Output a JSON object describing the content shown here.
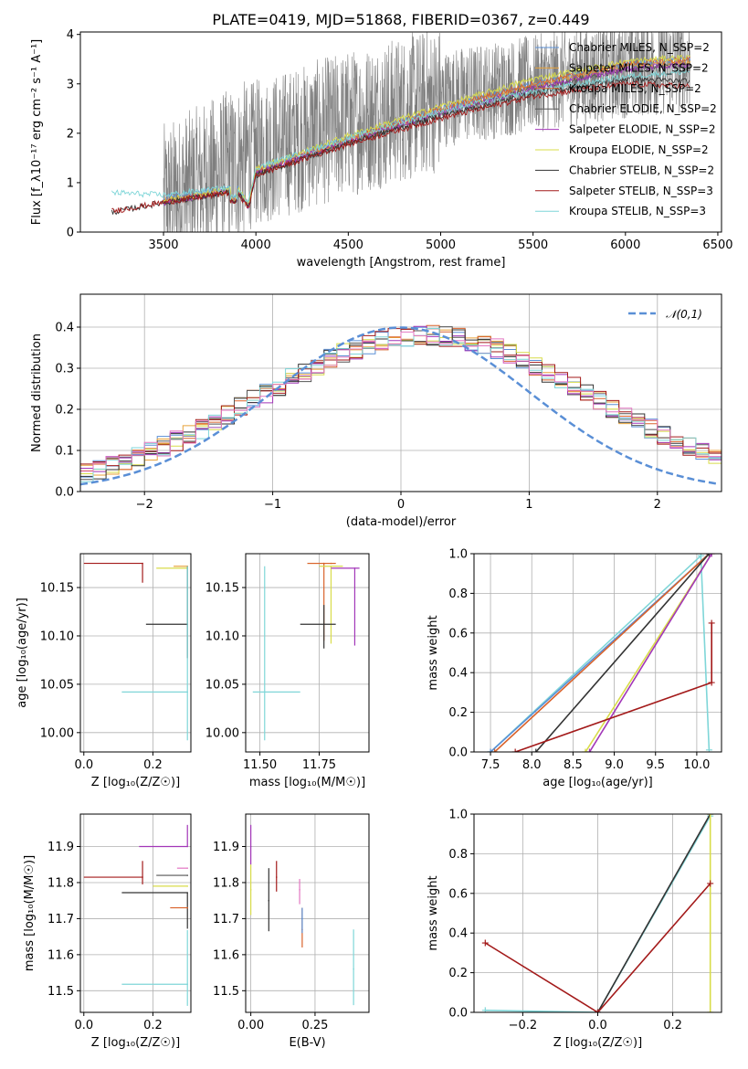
{
  "chart_data": [
    {
      "id": "spectrum",
      "type": "line",
      "title": "PLATE=0419, MJD=51868, FIBERID=0367, z=0.449",
      "xlabel": "wavelength [Angstrom, rest frame]",
      "ylabel": "Flux [f_λ10⁻¹⁷ erg cm⁻² s⁻¹ A⁻¹]",
      "xlim": [
        3050,
        6520
      ],
      "ylim": [
        0,
        4.05
      ],
      "xticks": [
        3500,
        4000,
        4500,
        5000,
        5500,
        6000,
        6500
      ],
      "yticks": [
        0,
        1,
        2,
        3,
        4
      ],
      "grid": false,
      "legend_position": "top-right",
      "series": [
        {
          "name": "Chabrier MILES, N_SSP=2",
          "color": "#5a8fd6",
          "shape": [
            [
              3500,
              0.7
            ],
            [
              3900,
              0.9
            ],
            [
              3960,
              0.55
            ],
            [
              4000,
              1.25
            ],
            [
              4500,
              1.9
            ],
            [
              5000,
              2.5
            ],
            [
              5500,
              3.0
            ],
            [
              6000,
              3.4
            ],
            [
              6350,
              3.5
            ]
          ]
        },
        {
          "name": "Salpeter MILES, N_SSP=2",
          "color": "#e8a23a",
          "shape": [
            [
              3500,
              0.62
            ],
            [
              3900,
              0.85
            ],
            [
              3960,
              0.5
            ],
            [
              4000,
              1.2
            ],
            [
              4500,
              1.85
            ],
            [
              5000,
              2.45
            ],
            [
              5500,
              2.95
            ],
            [
              6000,
              3.35
            ],
            [
              6350,
              3.45
            ]
          ]
        },
        {
          "name": "Kroupa MILES, N_SSP=2",
          "color": "#d9622b",
          "shape": [
            [
              3500,
              0.6
            ],
            [
              3900,
              0.86
            ],
            [
              3960,
              0.52
            ],
            [
              4000,
              1.22
            ],
            [
              4500,
              1.88
            ],
            [
              5000,
              2.5
            ],
            [
              5500,
              3.0
            ],
            [
              6000,
              3.4
            ],
            [
              6350,
              3.5
            ]
          ]
        },
        {
          "name": "Chabrier ELODIE, N_SSP=2",
          "color": "#555555",
          "shape": [
            [
              3500,
              0.58
            ],
            [
              3900,
              0.84
            ],
            [
              3960,
              0.5
            ],
            [
              4000,
              1.18
            ],
            [
              4500,
              1.8
            ],
            [
              5000,
              2.4
            ],
            [
              5500,
              2.9
            ],
            [
              6000,
              3.3
            ],
            [
              6350,
              3.4
            ]
          ]
        },
        {
          "name": "Salpeter ELODIE, N_SSP=2",
          "color": "#a236b8",
          "shape": [
            [
              3500,
              0.6
            ],
            [
              3900,
              0.86
            ],
            [
              3960,
              0.52
            ],
            [
              4000,
              1.2
            ],
            [
              4500,
              1.84
            ],
            [
              5000,
              2.42
            ],
            [
              5500,
              2.9
            ],
            [
              6000,
              3.3
            ],
            [
              6350,
              3.4
            ]
          ]
        },
        {
          "name": "Kroupa ELODIE, N_SSP=2",
          "color": "#d8dc4a",
          "shape": [
            [
              3500,
              0.64
            ],
            [
              3900,
              0.9
            ],
            [
              3960,
              0.55
            ],
            [
              4000,
              1.28
            ],
            [
              4500,
              1.95
            ],
            [
              5000,
              2.55
            ],
            [
              5500,
              3.1
            ],
            [
              6000,
              3.45
            ],
            [
              6350,
              3.55
            ]
          ]
        },
        {
          "name": "Chabrier STELIB, N_SSP=2",
          "color": "#333333",
          "shape": [
            [
              3220,
              0.4
            ],
            [
              3500,
              0.6
            ],
            [
              3900,
              0.82
            ],
            [
              3960,
              0.48
            ],
            [
              4000,
              1.15
            ],
            [
              4500,
              1.8
            ],
            [
              5000,
              2.35
            ],
            [
              5500,
              2.8
            ],
            [
              6000,
              3.1
            ],
            [
              6350,
              3.05
            ]
          ]
        },
        {
          "name": "Salpeter STELIB, N_SSP=3",
          "color": "#a31a1a",
          "shape": [
            [
              3220,
              0.42
            ],
            [
              3500,
              0.6
            ],
            [
              3900,
              0.82
            ],
            [
              3960,
              0.48
            ],
            [
              4000,
              1.15
            ],
            [
              4500,
              1.78
            ],
            [
              5000,
              2.3
            ],
            [
              5500,
              2.75
            ],
            [
              6000,
              3.0
            ],
            [
              6350,
              2.95
            ]
          ]
        },
        {
          "name": "Kroupa STELIB, N_SSP=3",
          "color": "#7fd6d8",
          "shape": [
            [
              3220,
              0.8
            ],
            [
              3500,
              0.75
            ],
            [
              3900,
              0.92
            ],
            [
              3960,
              0.6
            ],
            [
              4000,
              1.3
            ],
            [
              4500,
              1.9
            ],
            [
              5000,
              2.45
            ],
            [
              5500,
              2.85
            ],
            [
              6000,
              3.15
            ],
            [
              6350,
              3.25
            ]
          ]
        }
      ],
      "observed": {
        "color": "#7f7f7f",
        "xrange": [
          3500,
          6350
        ],
        "shape": [
          [
            3500,
            0.6
          ],
          [
            4000,
            1.6
          ],
          [
            4500,
            2.2
          ],
          [
            5000,
            2.7
          ],
          [
            5500,
            3.0
          ],
          [
            6000,
            3.3
          ],
          [
            6350,
            3.4
          ]
        ]
      }
    },
    {
      "id": "residuals",
      "type": "step",
      "xlabel": "(data-model)/error",
      "ylabel": "Normed distribution",
      "xlim": [
        -2.5,
        2.5
      ],
      "ylim": [
        0,
        0.48
      ],
      "xticks": [
        -2,
        -1,
        0,
        1,
        2
      ],
      "yticks": [
        0.0,
        0.1,
        0.2,
        0.3,
        0.4
      ],
      "grid": true,
      "legend_position": "top-right",
      "reference": {
        "name": "𝒩(0,1)",
        "color": "#5a8fd6"
      },
      "bins": {
        "start": -2.5,
        "width": 0.1,
        "count": 50
      },
      "center": 0.2,
      "sigma": 1.3,
      "series_colors": [
        "#5a8fd6",
        "#e8a23a",
        "#d9622b",
        "#555555",
        "#a236b8",
        "#d8dc4a",
        "#333333",
        "#a31a1a",
        "#7fd6d8",
        "#e377c2"
      ]
    },
    {
      "id": "age_vs_Z",
      "type": "errorbar",
      "xlabel": "Z [log₁₀(Z/Z☉)]",
      "ylabel": "age  [log₁₀(age/yr)]",
      "xlim": [
        -0.01,
        0.31
      ],
      "ylim": [
        9.98,
        10.185
      ],
      "xticks": [
        0.0,
        0.2
      ],
      "yticks": [
        10.0,
        10.05,
        10.1,
        10.15
      ],
      "grid": true,
      "points": [
        {
          "x": 0.17,
          "y": 10.175,
          "xerr": [
            0.17,
            0.0
          ],
          "yerr": [
            0.02,
            0.0
          ],
          "color": "#a31a1a"
        },
        {
          "x": 0.3,
          "y": 10.17,
          "xerr": [
            0.09,
            0.0
          ],
          "yerr": [
            0.0,
            0.0
          ],
          "color": "#d8dc4a"
        },
        {
          "x": 0.3,
          "y": 10.172,
          "xerr": [
            0.04,
            0.0
          ],
          "yerr": [
            0.0,
            0.0
          ],
          "color": "#e8a23a"
        },
        {
          "x": 0.3,
          "y": 10.112,
          "xerr": [
            0.12,
            0.0
          ],
          "yerr": [
            0.035,
            0.06
          ],
          "color": "#333333"
        },
        {
          "x": 0.3,
          "y": 10.042,
          "xerr": [
            0.19,
            0.0
          ],
          "yerr": [
            0.05,
            0.13
          ],
          "color": "#7fd6d8"
        }
      ]
    },
    {
      "id": "age_vs_mass",
      "type": "errorbar",
      "xlabel": "mass [log₁₀(M/M☉)]",
      "ylabel": "",
      "xlim": [
        11.44,
        11.96
      ],
      "ylim": [
        9.98,
        10.185
      ],
      "xticks": [
        11.5,
        11.75
      ],
      "yticks": [
        10.0,
        10.05,
        10.1,
        10.15
      ],
      "grid": true,
      "points": [
        {
          "x": 11.8,
          "y": 10.175,
          "xerr": [
            0.1,
            0.02
          ],
          "yerr": [
            0.0,
            0.0
          ],
          "color": "#e8a23a"
        },
        {
          "x": 11.77,
          "y": 10.175,
          "xerr": [
            0.07,
            0.05
          ],
          "yerr": [
            0.08,
            0.0
          ],
          "color": "#d9622b"
        },
        {
          "x": 11.8,
          "y": 10.172,
          "xerr": [
            0.05,
            0.05
          ],
          "yerr": [
            0.08,
            0.0
          ],
          "color": "#d8dc4a"
        },
        {
          "x": 11.9,
          "y": 10.17,
          "xerr": [
            0.1,
            0.02
          ],
          "yerr": [
            0.08,
            0.0
          ],
          "color": "#a236b8"
        },
        {
          "x": 11.77,
          "y": 10.112,
          "xerr": [
            0.1,
            0.05
          ],
          "yerr": [
            0.025,
            0.02
          ],
          "color": "#333333"
        },
        {
          "x": 11.52,
          "y": 10.042,
          "xerr": [
            0.05,
            0.15
          ],
          "yerr": [
            0.05,
            0.13
          ],
          "color": "#7fd6d8"
        }
      ]
    },
    {
      "id": "weight_vs_age",
      "type": "line",
      "xlabel": "age  [log₁₀(age/yr)]",
      "ylabel": "mass weight",
      "xlim": [
        7.3,
        10.3
      ],
      "ylim": [
        0,
        1
      ],
      "xticks": [
        7.5,
        8.0,
        8.5,
        9.0,
        9.5,
        10.0
      ],
      "yticks": [
        0.0,
        0.2,
        0.4,
        0.6,
        0.8,
        1.0
      ],
      "grid": true,
      "series": [
        {
          "color": "#7fd6d8",
          "x": [
            7.5,
            10.05,
            10.15
          ],
          "y": [
            0.0,
            0.99,
            0.01
          ]
        },
        {
          "color": "#5a8fd6",
          "x": [
            7.5,
            10.15
          ],
          "y": [
            0.0,
            1.0
          ]
        },
        {
          "color": "#d9622b",
          "x": [
            7.55,
            10.15
          ],
          "y": [
            0.0,
            1.0
          ]
        },
        {
          "color": "#333333",
          "x": [
            8.05,
            10.15
          ],
          "y": [
            0.0,
            1.0
          ]
        },
        {
          "color": "#d8dc4a",
          "x": [
            8.65,
            10.18
          ],
          "y": [
            0.0,
            1.0
          ]
        },
        {
          "color": "#a236b8",
          "x": [
            8.7,
            10.18
          ],
          "y": [
            0.0,
            1.0
          ]
        },
        {
          "color": "#a31a1a",
          "x": [
            7.8,
            10.18,
            10.18
          ],
          "y": [
            0.0,
            0.35,
            0.65
          ]
        }
      ]
    },
    {
      "id": "mass_vs_Z",
      "type": "errorbar",
      "xlabel": "Z [log₁₀(Z/Z☉)]",
      "ylabel": "mass [log₁₀(M/M☉)]",
      "xlim": [
        -0.01,
        0.31
      ],
      "ylim": [
        11.44,
        11.99
      ],
      "xticks": [
        0.0,
        0.2
      ],
      "yticks": [
        11.5,
        11.6,
        11.7,
        11.8,
        11.9
      ],
      "grid": true,
      "points": [
        {
          "x": 0.17,
          "y": 11.815,
          "xerr": [
            0.17,
            0.0
          ],
          "yerr": [
            0.02,
            0.045
          ],
          "color": "#a31a1a"
        },
        {
          "x": 0.3,
          "y": 11.9,
          "xerr": [
            0.14,
            0.0
          ],
          "yerr": [
            0.0,
            0.06
          ],
          "color": "#a236b8"
        },
        {
          "x": 0.3,
          "y": 11.82,
          "xerr": [
            0.09,
            0.0
          ],
          "yerr": [
            0.0,
            0.0
          ],
          "color": "#555555"
        },
        {
          "x": 0.3,
          "y": 11.79,
          "xerr": [
            0.1,
            0.0
          ],
          "yerr": [
            0.0,
            0.0
          ],
          "color": "#d8dc4a"
        },
        {
          "x": 0.3,
          "y": 11.772,
          "xerr": [
            0.19,
            0.0
          ],
          "yerr": [
            0.1,
            0.0
          ],
          "color": "#333333"
        },
        {
          "x": 0.3,
          "y": 11.73,
          "xerr": [
            0.05,
            0.0
          ],
          "yerr": [
            0.0,
            0.0
          ],
          "color": "#d9622b"
        },
        {
          "x": 0.3,
          "y": 11.84,
          "xerr": [
            0.03,
            0.0
          ],
          "yerr": [
            0.0,
            0.0
          ],
          "color": "#e377c2"
        },
        {
          "x": 0.3,
          "y": 11.518,
          "xerr": [
            0.19,
            0.0
          ],
          "yerr": [
            0.06,
            0.15
          ],
          "color": "#7fd6d8"
        }
      ]
    },
    {
      "id": "mass_vs_EBV",
      "type": "errorbar",
      "xlabel": "E(B-V)",
      "ylabel": "",
      "xlim": [
        -0.02,
        0.46
      ],
      "ylim": [
        11.44,
        11.99
      ],
      "xticks": [
        0.0,
        0.25
      ],
      "yticks": [
        11.5,
        11.6,
        11.7,
        11.8,
        11.9
      ],
      "grid": true,
      "points": [
        {
          "x": 0.0,
          "y": 11.9,
          "xerr": [
            0,
            0
          ],
          "yerr": [
            0.05,
            0.06
          ],
          "color": "#a236b8"
        },
        {
          "x": 0.0,
          "y": 11.78,
          "xerr": [
            0,
            0
          ],
          "yerr": [
            0.07,
            0.07
          ],
          "color": "#d8dc4a"
        },
        {
          "x": 0.07,
          "y": 11.75,
          "xerr": [
            0,
            0
          ],
          "yerr": [
            0.085,
            0.09
          ],
          "color": "#333333"
        },
        {
          "x": 0.1,
          "y": 11.815,
          "xerr": [
            0,
            0
          ],
          "yerr": [
            0.04,
            0.045
          ],
          "color": "#a31a1a"
        },
        {
          "x": 0.19,
          "y": 11.78,
          "xerr": [
            0,
            0
          ],
          "yerr": [
            0.04,
            0.03
          ],
          "color": "#e377c2"
        },
        {
          "x": 0.2,
          "y": 11.67,
          "xerr": [
            0,
            0
          ],
          "yerr": [
            0.05,
            0.06
          ],
          "color": "#d9622b"
        },
        {
          "x": 0.2,
          "y": 11.7,
          "xerr": [
            0,
            0
          ],
          "yerr": [
            0.04,
            0.03
          ],
          "color": "#5a8fd6"
        },
        {
          "x": 0.4,
          "y": 11.56,
          "xerr": [
            0,
            0
          ],
          "yerr": [
            0.1,
            0.11
          ],
          "color": "#7fd6d8"
        }
      ]
    },
    {
      "id": "weight_vs_Z",
      "type": "line",
      "xlabel": "Z [log₁₀(Z/Z☉)]",
      "ylabel": "mass weight",
      "xlim": [
        -0.33,
        0.33
      ],
      "ylim": [
        0,
        1
      ],
      "xticks": [
        -0.2,
        0.0,
        0.2
      ],
      "yticks": [
        0.0,
        0.2,
        0.4,
        0.6,
        0.8,
        1.0
      ],
      "grid": true,
      "series": [
        {
          "color": "#7fd6d8",
          "x": [
            -0.3,
            0.0,
            0.3
          ],
          "y": [
            0.01,
            0.0,
            0.99
          ]
        },
        {
          "color": "#333333",
          "x": [
            0.0,
            0.3
          ],
          "y": [
            0.0,
            1.0
          ]
        },
        {
          "color": "#d8dc4a",
          "x": [
            0.3,
            0.3
          ],
          "y": [
            0.0,
            1.0
          ]
        },
        {
          "color": "#a31a1a",
          "x": [
            -0.3,
            0.0,
            0.3
          ],
          "y": [
            0.35,
            0.0,
            0.65
          ]
        }
      ]
    }
  ]
}
